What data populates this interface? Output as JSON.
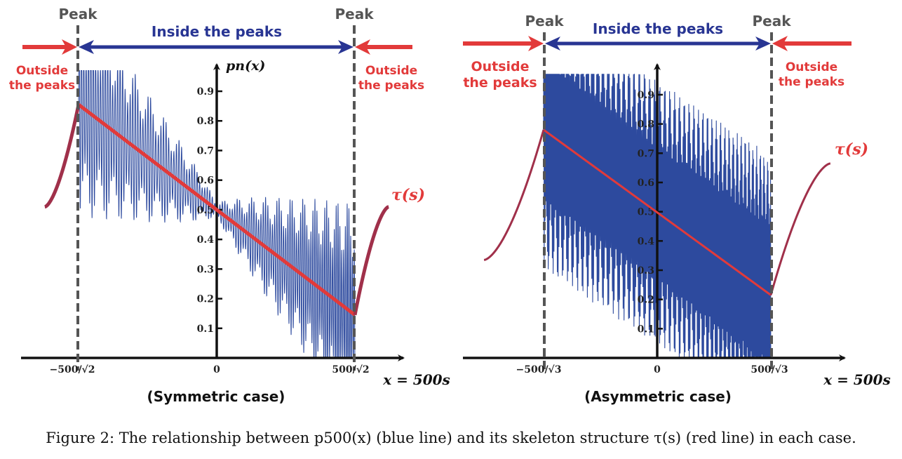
{
  "caption": "Figure 2: The relationship between p500(x) (blue line) and its skeleton structure τ(s) (red line) in each case.",
  "colors": {
    "blue": "#2d4a9e",
    "red": "#e23a3a",
    "dark_red": "#a0304a",
    "gray": "#555555",
    "navy": "#283593"
  },
  "chart_data": [
    {
      "type": "line",
      "subtitle": "(Symmetric case)",
      "xlabel": "x = 500s",
      "ylabel": "pn(x)",
      "ylim": [
        0,
        1.0
      ],
      "y_ticks": [
        "0.1",
        "0.2",
        "0.3",
        "0.4",
        "0.5",
        "0.6",
        "0.7",
        "0.8",
        "0.9"
      ],
      "x_ticks": [
        "−500/√2",
        "0",
        "500/√2"
      ],
      "peak_label": "Peak",
      "inside_label": "Inside the peaks",
      "outside_label_line1": "Outside",
      "outside_label_line2": "the peaks",
      "tau_label": "τ(s)",
      "peak_x": [
        -353.6,
        353.6
      ],
      "x_range": [
        -440,
        440
      ],
      "tau_inside": {
        "x": [
          -353.6,
          353.6
        ],
        "y": [
          0.855,
          0.145
        ]
      },
      "tau_outside_left": {
        "x": [
          -440,
          -353.6
        ],
        "y": [
          0.51,
          0.855
        ]
      },
      "tau_outside_right": {
        "x": [
          353.6,
          440
        ],
        "y": [
          0.145,
          0.51
        ]
      },
      "oscillation": {
        "center_start": 0.855,
        "center_end": 0.145,
        "amplitude_edge": 0.38,
        "amplitude_center": 0.02,
        "cycles": 110
      }
    },
    {
      "type": "line",
      "subtitle": "(Asymmetric case)",
      "xlabel": "x = 500s",
      "ylabel": "",
      "ylim": [
        0,
        1.0
      ],
      "y_ticks": [
        "0.1",
        "0.2",
        "0.3",
        "0.4",
        "0.5",
        "0.6",
        "0.7",
        "0.8",
        "0.9"
      ],
      "x_ticks": [
        "−500/√3",
        "0",
        "500/√3"
      ],
      "peak_label": "Peak",
      "inside_label": "Inside the peaks",
      "outside_label_line1": "Outside",
      "outside_label_line2": "the peaks",
      "tau_label": "τ(s)",
      "peak_x": [
        -288.7,
        288.7
      ],
      "x_range": [
        -440,
        440
      ],
      "tau_inside": {
        "x": [
          -288.7,
          288.7
        ],
        "y": [
          0.78,
          0.215
        ]
      },
      "tau_outside_left": {
        "x": [
          -440,
          -288.7
        ],
        "y": [
          0.335,
          0.78
        ]
      },
      "tau_outside_right": {
        "x": [
          288.7,
          440
        ],
        "y": [
          0.215,
          0.665
        ]
      },
      "oscillation": {
        "center_start": 0.78,
        "center_end": 0.215,
        "amplitude_edge": 0.48,
        "amplitude_center": 0.45,
        "cycles": 260
      }
    }
  ]
}
